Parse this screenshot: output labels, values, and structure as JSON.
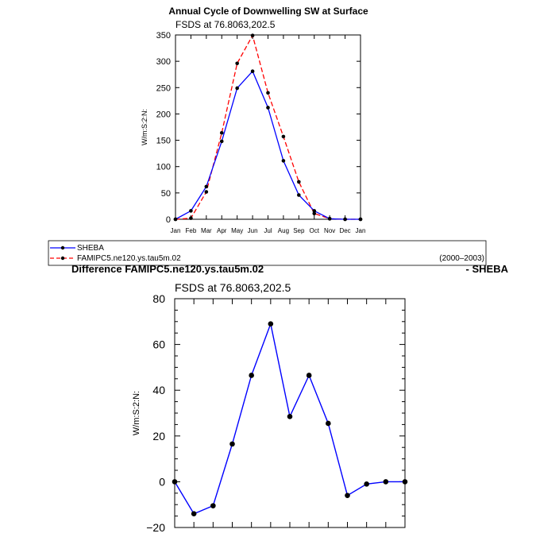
{
  "colors": {
    "sheba": "#0000ff",
    "model": "#ff0000",
    "diff": "#0000ff",
    "axis": "#000000"
  },
  "chart_data": [
    {
      "type": "line",
      "title": "Annual Cycle of Downwelling SW at Surface",
      "subtitle": "FSDS at 76.8063,202.5",
      "ylabel": "W/m:S:2:N:",
      "xlabel": "",
      "categories": [
        "Jan",
        "Feb",
        "Mar",
        "Apr",
        "May",
        "Jun",
        "Jul",
        "Aug",
        "Sep",
        "Oct",
        "Nov",
        "Dec",
        "Jan"
      ],
      "ylim": [
        0,
        350
      ],
      "yticks": [
        0,
        50,
        100,
        150,
        200,
        250,
        300,
        350
      ],
      "series": [
        {
          "name": "SHEBA",
          "style": "solid",
          "values": [
            0,
            16,
            62,
            148,
            249,
            281,
            212,
            111,
            46,
            16,
            1,
            0,
            0
          ]
        },
        {
          "name": "FAMIPC5.ne120.ys.tau5m.02",
          "style": "dashed",
          "values": [
            0,
            2,
            52,
            164,
            296,
            349,
            240,
            157,
            71,
            11,
            1,
            0,
            0
          ]
        }
      ],
      "legend": {
        "period": "(2000–2003)",
        "placement": "bottom"
      }
    },
    {
      "type": "line",
      "title_left": "Difference FAMIPC5.ne120.ys.tau5m.02",
      "title_right": "- SHEBA",
      "subtitle": "FSDS at 76.8063,202.5",
      "ylabel": "W/m:S:2:N:",
      "xlabel": "",
      "ylim": [
        -20,
        80
      ],
      "yticks": [
        -20,
        0,
        20,
        40,
        60,
        80
      ],
      "series": [
        {
          "name": "",
          "values": [
            0,
            -14,
            -10.5,
            16.5,
            46.5,
            69,
            28.5,
            46.5,
            25.5,
            -6,
            -1,
            0,
            0
          ]
        }
      ]
    }
  ]
}
